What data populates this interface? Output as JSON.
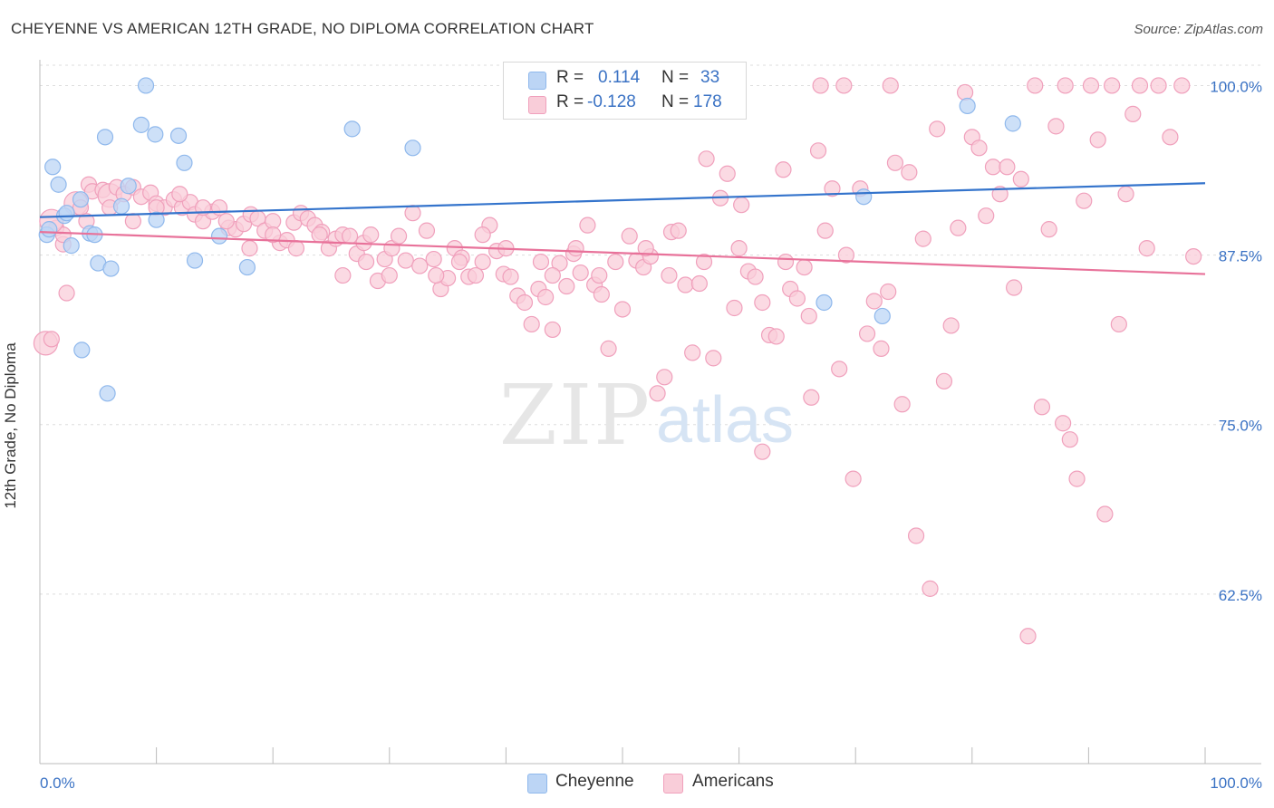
{
  "title": "CHEYENNE VS AMERICAN 12TH GRADE, NO DIPLOMA CORRELATION CHART",
  "source": "Source: ZipAtlas.com",
  "watermark": {
    "zip": "ZIP",
    "atlas": "atlas"
  },
  "legend": {
    "rows": [
      {
        "r_label": "R =",
        "r_value": "0.114",
        "n_label": "N =",
        "n_value": "33",
        "color": "#8fb8ec",
        "fill": "#bcd5f5"
      },
      {
        "r_label": "R =",
        "r_value": "-0.128",
        "n_label": "N =",
        "n_value": "178",
        "color": "#f0a0bc",
        "fill": "#f9cdd9"
      }
    ]
  },
  "bottom_legend": [
    {
      "label": "Cheyenne",
      "fill": "#bcd5f5",
      "stroke": "#8fb8ec"
    },
    {
      "label": "Americans",
      "fill": "#f9cdd9",
      "stroke": "#f0a0bc"
    }
  ],
  "chart_data": {
    "type": "scatter",
    "title": "CHEYENNE VS AMERICAN 12TH GRADE, NO DIPLOMA CORRELATION CHART",
    "xlabel": "",
    "ylabel": "12th Grade, No Diploma",
    "xlim": [
      0,
      100
    ],
    "ylim": [
      50,
      101.5
    ],
    "x_tick_labels": [
      "0.0%",
      "100.0%"
    ],
    "y_ticks": [
      62.5,
      75.0,
      87.5,
      100.0
    ],
    "y_tick_labels": [
      "62.5%",
      "75.0%",
      "87.5%",
      "100.0%"
    ],
    "grid": true,
    "legend_position": "top-center",
    "series": [
      {
        "name": "Cheyenne",
        "color": "#8fb8ec",
        "fill": "#bcd5f5",
        "trend_color": "#3474cc",
        "trend": {
          "x": [
            0,
            100
          ],
          "y": [
            90.3,
            92.8
          ]
        },
        "points": [
          [
            0.6,
            89
          ],
          [
            1.1,
            94
          ],
          [
            1.6,
            92.7
          ],
          [
            2.1,
            90.4
          ],
          [
            2.7,
            88.2
          ],
          [
            3.5,
            91.6
          ],
          [
            4.3,
            89.1
          ],
          [
            4.7,
            89
          ],
          [
            5,
            86.9
          ],
          [
            5.6,
            96.2
          ],
          [
            6.1,
            86.5
          ],
          [
            7,
            91.1
          ],
          [
            7.6,
            92.6
          ],
          [
            8.7,
            97.1
          ],
          [
            9.1,
            100
          ],
          [
            9.9,
            96.4
          ],
          [
            10,
            90.1
          ],
          [
            11.9,
            96.3
          ],
          [
            12.4,
            94.3
          ],
          [
            13.3,
            87.1
          ],
          [
            15.4,
            88.9
          ],
          [
            17.8,
            86.6
          ],
          [
            26.8,
            96.8
          ],
          [
            32,
            95.4
          ],
          [
            67.3,
            84
          ],
          [
            70.7,
            91.8
          ],
          [
            72.3,
            83
          ],
          [
            79.6,
            98.5
          ],
          [
            83.5,
            97.2
          ],
          [
            3.6,
            80.5
          ],
          [
            5.8,
            77.3
          ],
          [
            0.8,
            89.4
          ],
          [
            2.3,
            90.6
          ]
        ]
      },
      {
        "name": "Americans",
        "color": "#f0a0bc",
        "fill": "#f9cdd9",
        "trend_color": "#e8729a",
        "trend": {
          "x": [
            0,
            100
          ],
          "y": [
            89.2,
            86.1
          ]
        },
        "points": [
          [
            0.5,
            81
          ],
          [
            1,
            81.3
          ],
          [
            1.4,
            89.5
          ],
          [
            2,
            88.3
          ],
          [
            2.3,
            84.7
          ],
          [
            3.1,
            91.3
          ],
          [
            3.5,
            91
          ],
          [
            4.2,
            92.7
          ],
          [
            4.5,
            92.2
          ],
          [
            5.4,
            92.3
          ],
          [
            6,
            91.9
          ],
          [
            6.6,
            92.5
          ],
          [
            7.2,
            92
          ],
          [
            8,
            92.5
          ],
          [
            8.7,
            91.8
          ],
          [
            9.5,
            92.1
          ],
          [
            10,
            91.3
          ],
          [
            10.7,
            91
          ],
          [
            11.5,
            91.6
          ],
          [
            12.2,
            91
          ],
          [
            12.9,
            91.4
          ],
          [
            13.3,
            90.5
          ],
          [
            14,
            90
          ],
          [
            14.8,
            90.7
          ],
          [
            15.4,
            91
          ],
          [
            16.2,
            89.5
          ],
          [
            16.8,
            89.4
          ],
          [
            17.5,
            89.8
          ],
          [
            18.1,
            90.5
          ],
          [
            18.7,
            90.2
          ],
          [
            19.3,
            89.3
          ],
          [
            20,
            90
          ],
          [
            20.6,
            88.4
          ],
          [
            21.2,
            88.6
          ],
          [
            21.8,
            89.9
          ],
          [
            22.4,
            90.6
          ],
          [
            23,
            90.2
          ],
          [
            23.6,
            89.7
          ],
          [
            24.2,
            89.2
          ],
          [
            24.8,
            88
          ],
          [
            25.4,
            88.7
          ],
          [
            26,
            89
          ],
          [
            26.6,
            88.9
          ],
          [
            27.2,
            87.6
          ],
          [
            27.8,
            88.4
          ],
          [
            28.4,
            89
          ],
          [
            29,
            85.6
          ],
          [
            29.6,
            87.2
          ],
          [
            30.2,
            88
          ],
          [
            30.8,
            88.9
          ],
          [
            31.4,
            87.1
          ],
          [
            32,
            90.6
          ],
          [
            32.6,
            86.7
          ],
          [
            33.2,
            89.3
          ],
          [
            33.8,
            87.2
          ],
          [
            34.4,
            85
          ],
          [
            35,
            85.8
          ],
          [
            35.6,
            88
          ],
          [
            36.2,
            87.3
          ],
          [
            36.8,
            85.9
          ],
          [
            37.4,
            86
          ],
          [
            38,
            87
          ],
          [
            38.6,
            89.7
          ],
          [
            39.2,
            87.8
          ],
          [
            39.8,
            86.1
          ],
          [
            40.4,
            85.9
          ],
          [
            41,
            84.5
          ],
          [
            41.6,
            84
          ],
          [
            42.2,
            82.4
          ],
          [
            42.8,
            85
          ],
          [
            43.4,
            84.4
          ],
          [
            44,
            82
          ],
          [
            44.6,
            86.9
          ],
          [
            45.2,
            85.2
          ],
          [
            45.8,
            87.6
          ],
          [
            46.4,
            86.2
          ],
          [
            47,
            89.7
          ],
          [
            47.6,
            85.3
          ],
          [
            48.2,
            84.6
          ],
          [
            48.8,
            80.6
          ],
          [
            49.4,
            87
          ],
          [
            50,
            83.5
          ],
          [
            50.6,
            88.9
          ],
          [
            51.2,
            87.1
          ],
          [
            51.8,
            86.6
          ],
          [
            52.4,
            87.4
          ],
          [
            53,
            77.3
          ],
          [
            53.6,
            78.5
          ],
          [
            54.2,
            89.2
          ],
          [
            54.8,
            89.3
          ],
          [
            55.4,
            85.3
          ],
          [
            56,
            80.3
          ],
          [
            56.6,
            85.4
          ],
          [
            57.2,
            94.6
          ],
          [
            57.8,
            79.9
          ],
          [
            58.4,
            91.7
          ],
          [
            59,
            93.5
          ],
          [
            59.6,
            83.6
          ],
          [
            60.2,
            91.2
          ],
          [
            60.8,
            86.3
          ],
          [
            61.4,
            85.9
          ],
          [
            62,
            73
          ],
          [
            62.6,
            81.6
          ],
          [
            63.2,
            81.5
          ],
          [
            63.8,
            93.8
          ],
          [
            64.4,
            85
          ],
          [
            65,
            84.3
          ],
          [
            65.6,
            86.6
          ],
          [
            66.2,
            77
          ],
          [
            66.8,
            95.2
          ],
          [
            67.4,
            89.3
          ],
          [
            68,
            92.4
          ],
          [
            68.6,
            79.1
          ],
          [
            69.2,
            87.5
          ],
          [
            69.8,
            71
          ],
          [
            70.4,
            92.4
          ],
          [
            71,
            81.7
          ],
          [
            71.6,
            84.1
          ],
          [
            72.2,
            80.6
          ],
          [
            72.8,
            84.8
          ],
          [
            73.4,
            94.3
          ],
          [
            74,
            76.5
          ],
          [
            74.6,
            93.6
          ],
          [
            75.2,
            66.8
          ],
          [
            75.8,
            88.7
          ],
          [
            76.4,
            62.9
          ],
          [
            77,
            96.8
          ],
          [
            77.6,
            78.2
          ],
          [
            78.2,
            82.3
          ],
          [
            78.8,
            89.5
          ],
          [
            79.4,
            99.5
          ],
          [
            80,
            96.2
          ],
          [
            80.6,
            95.4
          ],
          [
            81.2,
            90.4
          ],
          [
            81.8,
            94
          ],
          [
            82.4,
            92
          ],
          [
            83,
            94
          ],
          [
            83.6,
            85.1
          ],
          [
            84.2,
            93.1
          ],
          [
            84.8,
            59.4
          ],
          [
            85.4,
            100
          ],
          [
            86,
            76.3
          ],
          [
            86.6,
            89.4
          ],
          [
            87.2,
            97
          ],
          [
            87.8,
            75.1
          ],
          [
            88.4,
            73.9
          ],
          [
            89,
            71
          ],
          [
            89.6,
            91.5
          ],
          [
            90.2,
            100
          ],
          [
            90.8,
            96
          ],
          [
            91.4,
            68.4
          ],
          [
            92,
            100
          ],
          [
            92.6,
            82.4
          ],
          [
            93.2,
            92
          ],
          [
            93.8,
            97.9
          ],
          [
            94.4,
            100
          ],
          [
            95,
            88
          ],
          [
            96,
            100
          ],
          [
            97,
            96.2
          ],
          [
            98,
            100
          ],
          [
            99,
            87.4
          ],
          [
            67,
            100
          ],
          [
            69,
            100
          ],
          [
            73,
            100
          ],
          [
            88,
            100
          ],
          [
            43,
            87
          ],
          [
            44,
            86
          ],
          [
            46,
            88
          ],
          [
            48,
            86
          ],
          [
            52,
            88
          ],
          [
            54,
            86
          ],
          [
            57,
            87
          ],
          [
            60,
            88
          ],
          [
            62,
            84
          ],
          [
            64,
            87
          ],
          [
            66,
            83
          ],
          [
            40,
            88
          ],
          [
            38,
            89
          ],
          [
            36,
            87
          ],
          [
            34,
            86
          ],
          [
            30,
            86
          ],
          [
            28,
            87
          ],
          [
            26,
            86
          ],
          [
            24,
            89
          ],
          [
            22,
            88
          ],
          [
            20,
            89
          ],
          [
            18,
            88
          ],
          [
            16,
            90
          ],
          [
            14,
            91
          ],
          [
            12,
            92
          ],
          [
            10,
            91
          ],
          [
            8,
            90
          ],
          [
            6,
            91
          ],
          [
            4,
            90
          ],
          [
            2,
            89
          ],
          [
            1,
            90
          ]
        ]
      }
    ]
  }
}
